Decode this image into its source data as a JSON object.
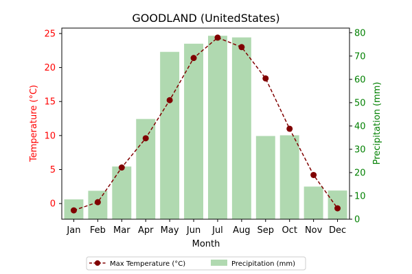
{
  "chart_data": {
    "type": "bar+line",
    "title": "GOODLAND (UnitedStates)",
    "xlabel": "Month",
    "ylabel_left": "Temperature (°C)",
    "ylabel_right": "Precipitation (mm)",
    "categories": [
      "Jan",
      "Feb",
      "Mar",
      "Apr",
      "May",
      "Jun",
      "Jul",
      "Aug",
      "Sep",
      "Oct",
      "Nov",
      "Dec"
    ],
    "series": [
      {
        "name": "Max Temperature (°C)",
        "kind": "line",
        "axis": "left",
        "color": "#800000",
        "values": [
          -1.0,
          0.2,
          5.3,
          9.6,
          15.2,
          21.4,
          24.4,
          23.0,
          18.4,
          11.0,
          4.2,
          -0.7
        ]
      },
      {
        "name": "Precipitation (mm)",
        "kind": "bar",
        "axis": "right",
        "color": "#b0d9b0",
        "values": [
          8.5,
          12.2,
          22.6,
          43.0,
          71.8,
          75.3,
          78.7,
          78.0,
          35.7,
          36.0,
          14.0,
          12.3
        ]
      }
    ],
    "ylim_left": [
      -2.3,
      25.8
    ],
    "ylim_right": [
      0,
      82
    ],
    "yticks_left": [
      0,
      5,
      10,
      15,
      20,
      25
    ],
    "yticks_right": [
      0,
      10,
      20,
      30,
      40,
      50,
      60,
      70,
      80
    ],
    "left_axis_color": "#ff0000",
    "right_axis_color": "#008000",
    "legend_position": "bottom-center",
    "grid": false
  }
}
